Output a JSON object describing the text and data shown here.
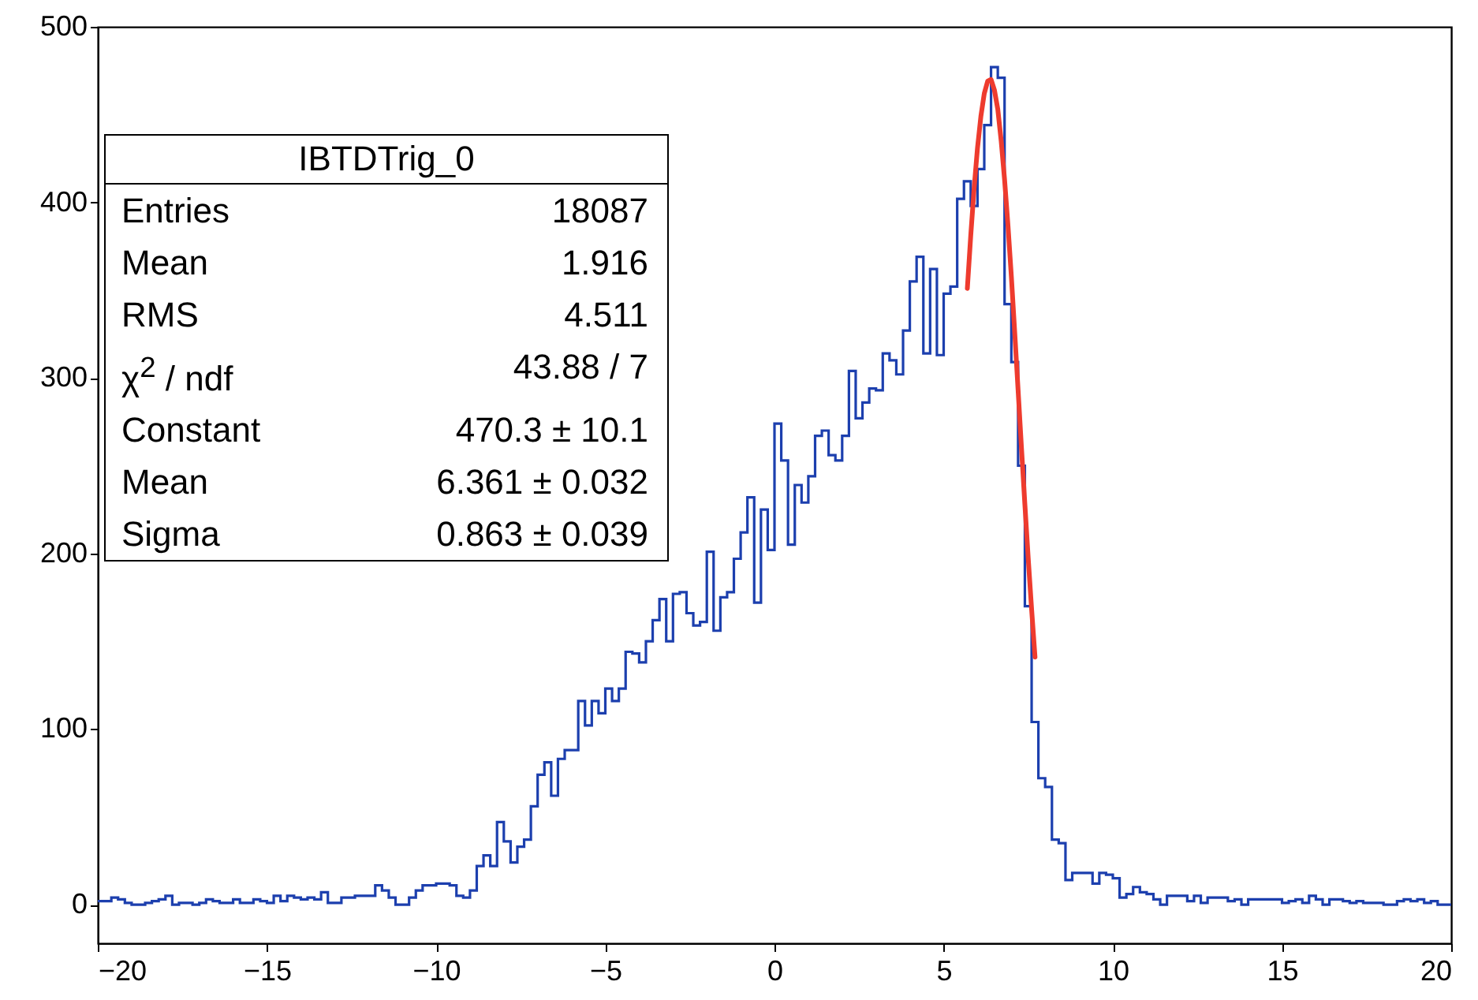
{
  "chart_data": {
    "type": "histogram",
    "bins": [
      -20,
      -19.8,
      -19.6,
      -19.4,
      -19.2,
      -19,
      -18.8,
      -18.6,
      -18.4,
      -18.2,
      -18,
      -17.8,
      -17.6,
      -17.4,
      -17.2,
      -17,
      -16.8,
      -16.6,
      -16.4,
      -16.2,
      -16,
      -15.8,
      -15.6,
      -15.4,
      -15.2,
      -15,
      -14.8,
      -14.6,
      -14.4,
      -14.2,
      -14,
      -13.8,
      -13.6,
      -13.4,
      -13.2,
      -13,
      -12.8,
      -12.6,
      -12.4,
      -12.2,
      -12,
      -11.8,
      -11.6,
      -11.4,
      -11.2,
      -11,
      -10.8,
      -10.6,
      -10.4,
      -10.2,
      -10,
      -9.8,
      -9.6,
      -9.4,
      -9.2,
      -9,
      -8.8,
      -8.6,
      -8.4,
      -8.2,
      -8,
      -7.8,
      -7.6,
      -7.4,
      -7.2,
      -7,
      -6.8,
      -6.6,
      -6.4,
      -6.2,
      -6,
      -5.8,
      -5.6,
      -5.4,
      -5.2,
      -5,
      -4.8,
      -4.6,
      -4.4,
      -4.2,
      -4,
      -3.8,
      -3.6,
      -3.4,
      -3.2,
      -3,
      -2.8,
      -2.6,
      -2.4,
      -2.2,
      -2,
      -1.8,
      -1.6,
      -1.4,
      -1.2,
      -1,
      -0.8,
      -0.6,
      -0.4,
      -0.2,
      0,
      0.2,
      0.4,
      0.6,
      0.8,
      1,
      1.2,
      1.4,
      1.6,
      1.8,
      2,
      2.2,
      2.4,
      2.6,
      2.8,
      3,
      3.2,
      3.4,
      3.6,
      3.8,
      4,
      4.2,
      4.4,
      4.6,
      4.8,
      5,
      5.2,
      5.4,
      5.6,
      5.8,
      6,
      6.2,
      6.4,
      6.6,
      6.8,
      7,
      7.2,
      7.4,
      7.6,
      7.8,
      8,
      8.2,
      8.4,
      8.6,
      8.8,
      9,
      9.2,
      9.4,
      9.6,
      9.8,
      10,
      10.2,
      10.4,
      10.6,
      10.8,
      11,
      11.2,
      11.4,
      11.6,
      11.8,
      12,
      12.2,
      12.4,
      12.6,
      12.8,
      13,
      13.2,
      13.4,
      13.6,
      13.8,
      14,
      14.2,
      14.4,
      14.6,
      14.8,
      15,
      15.2,
      15.4,
      15.6,
      15.8,
      16,
      16.2,
      16.4,
      16.6,
      16.8,
      17,
      17.2,
      17.4,
      17.6,
      17.8,
      18,
      18.2,
      18.4,
      18.6,
      18.8,
      19,
      19.2,
      19.4,
      19.6,
      19.8,
      20
    ],
    "series": [
      {
        "type": "histogram",
        "color": "#1c3fae",
        "values": [
          2,
          2,
          4,
          3,
          1,
          0,
          0,
          1,
          2,
          3,
          5,
          0,
          1,
          1,
          0,
          1,
          3,
          2,
          1,
          1,
          3,
          1,
          1,
          3,
          2,
          1,
          5,
          2,
          5,
          4,
          3,
          4,
          3,
          7,
          1,
          1,
          4,
          4,
          5,
          5,
          5,
          11,
          8,
          4,
          0,
          0,
          4,
          8,
          11,
          11,
          12,
          12,
          11,
          5,
          4,
          8,
          22,
          28,
          22,
          47,
          36,
          24,
          33,
          37,
          56,
          74,
          81,
          62,
          83,
          88,
          88,
          116,
          102,
          116,
          109,
          123,
          116,
          123,
          144,
          143,
          138,
          150,
          162,
          174,
          150,
          177,
          178,
          166,
          159,
          161,
          201,
          156,
          175,
          178,
          197,
          212,
          232,
          172,
          225,
          202,
          274,
          253,
          205,
          239,
          229,
          244,
          267,
          270,
          256,
          253,
          267,
          304,
          277,
          286,
          294,
          293,
          314,
          310,
          302,
          327,
          355,
          369,
          314,
          362,
          313,
          348,
          352,
          402,
          412,
          398,
          419,
          444,
          477,
          471,
          342,
          309,
          250,
          170,
          104,
          72,
          67,
          37,
          35,
          14,
          18,
          18,
          18,
          12,
          18,
          17,
          15,
          4,
          6,
          10,
          7,
          6,
          3,
          0,
          5,
          5,
          5,
          2,
          5,
          1,
          4,
          4,
          4,
          2,
          3,
          0,
          3,
          3,
          3,
          3,
          3,
          1,
          2,
          3,
          1,
          5,
          3,
          0,
          3,
          3,
          2,
          1,
          2,
          1,
          1,
          1,
          0,
          0,
          2,
          3,
          2,
          3,
          1,
          2,
          0,
          0
        ]
      },
      {
        "type": "line",
        "color": "#ee3b2e",
        "x": [
          5.7,
          5.8,
          5.9,
          6.0,
          6.1,
          6.2,
          6.3,
          6.4,
          6.5,
          6.6,
          6.7,
          6.8,
          6.9,
          7.0,
          7.1,
          7.2,
          7.3,
          7.4,
          7.5,
          7.6,
          7.7
        ],
        "values": [
          351,
          381,
          408,
          431,
          449,
          462,
          469,
          470,
          464,
          453,
          435,
          413,
          387,
          358,
          326,
          293,
          260,
          228,
          197,
          168,
          141
        ]
      }
    ],
    "xlim": [
      -20,
      20
    ],
    "xticks": [
      -20,
      -15,
      -10,
      -5,
      0,
      5,
      10,
      15,
      20
    ],
    "ylim": [
      -22,
      500
    ],
    "yticks": [
      0,
      100,
      200,
      300,
      400,
      500
    ],
    "annotations": [
      "IBTDTrig_0",
      "Entries  18087",
      "Mean  1.916",
      "RMS  4.511",
      "χ$^{2}$ / ndf  43.88 / 7",
      "Constant  470.3 ± 10.1",
      "Mean  6.361 ± 0.032",
      "Sigma  0.863 ± 0.039"
    ]
  }
}
